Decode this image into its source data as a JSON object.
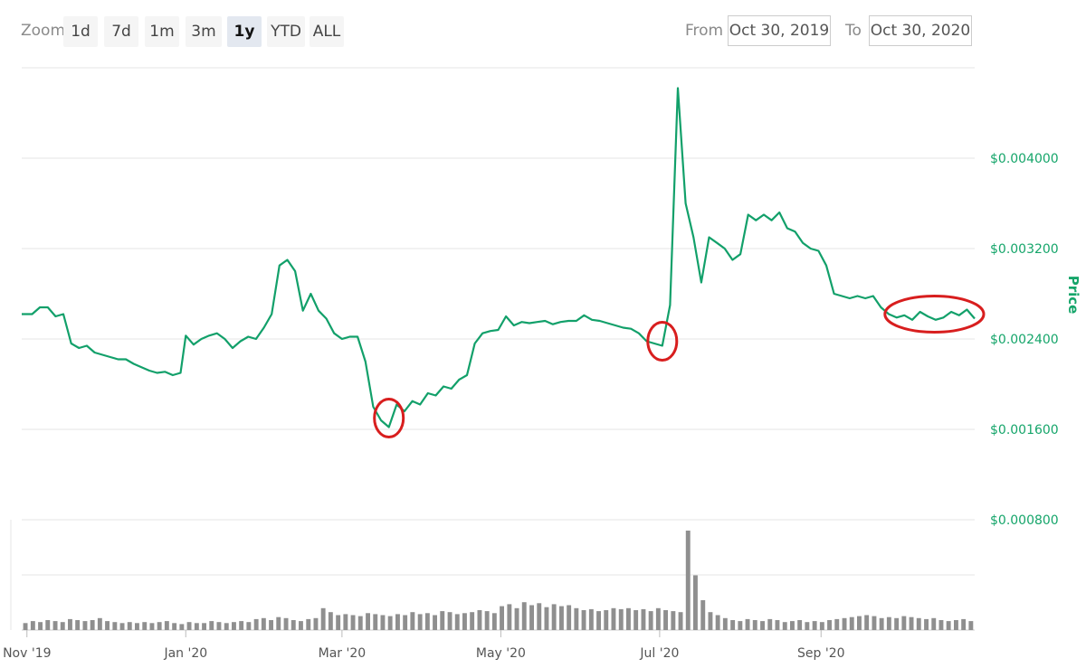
{
  "toolbar": {
    "zoom_label": "Zoom",
    "zoom_buttons": [
      "1d",
      "7d",
      "1m",
      "3m",
      "1y",
      "YTD",
      "ALL"
    ],
    "active_zoom": "1y",
    "from_label": "From",
    "from_value": "Oct 30, 2019",
    "to_label": "To",
    "to_value": "Oct 30, 2020"
  },
  "colors": {
    "price_line": "#12a06a",
    "volume_bar": "#8f8f8f",
    "gridline": "#e6e6e6",
    "annotation": "#d81e1e",
    "axis_text": "#15a56a"
  },
  "chart_data": {
    "type": "line",
    "ylabel": "Price",
    "ylim": [
      0.0008,
      0.0048
    ],
    "yticks": [
      {
        "value": 0.0008,
        "label": "$0.000800"
      },
      {
        "value": 0.0016,
        "label": "$0.001600"
      },
      {
        "value": 0.0024,
        "label": "$0.002400"
      },
      {
        "value": 0.0032,
        "label": "$0.003200"
      },
      {
        "value": 0.004,
        "label": "$0.004000"
      }
    ],
    "xlim": [
      "2019-10-30",
      "2020-10-30"
    ],
    "xticks": [
      {
        "date": "2019-11-01",
        "label": "Nov '19"
      },
      {
        "date": "2020-01-01",
        "label": "Jan '20"
      },
      {
        "date": "2020-03-01",
        "label": "Mar '20"
      },
      {
        "date": "2020-05-01",
        "label": "May '20"
      },
      {
        "date": "2020-07-01",
        "label": "Jul '20"
      },
      {
        "date": "2020-09-01",
        "label": "Sep '20"
      }
    ],
    "series": [
      {
        "values": [
          [
            "2019-10-30",
            0.00262
          ],
          [
            "2019-11-03",
            0.00262
          ],
          [
            "2019-11-06",
            0.00268
          ],
          [
            "2019-11-09",
            0.00268
          ],
          [
            "2019-11-12",
            0.0026
          ],
          [
            "2019-11-15",
            0.00262
          ],
          [
            "2019-11-18",
            0.00236
          ],
          [
            "2019-11-21",
            0.00232
          ],
          [
            "2019-11-24",
            0.00234
          ],
          [
            "2019-11-27",
            0.00228
          ],
          [
            "2019-11-30",
            0.00226
          ],
          [
            "2019-12-03",
            0.00224
          ],
          [
            "2019-12-06",
            0.00222
          ],
          [
            "2019-12-09",
            0.00222
          ],
          [
            "2019-12-12",
            0.00218
          ],
          [
            "2019-12-15",
            0.00215
          ],
          [
            "2019-12-18",
            0.00212
          ],
          [
            "2019-12-21",
            0.0021
          ],
          [
            "2019-12-24",
            0.00211
          ],
          [
            "2019-12-27",
            0.00208
          ],
          [
            "2019-12-30",
            0.0021
          ],
          [
            "2020-01-01",
            0.00243
          ],
          [
            "2020-01-04",
            0.00235
          ],
          [
            "2020-01-07",
            0.0024
          ],
          [
            "2020-01-10",
            0.00243
          ],
          [
            "2020-01-13",
            0.00245
          ],
          [
            "2020-01-16",
            0.0024
          ],
          [
            "2020-01-19",
            0.00232
          ],
          [
            "2020-01-22",
            0.00238
          ],
          [
            "2020-01-25",
            0.00242
          ],
          [
            "2020-01-28",
            0.0024
          ],
          [
            "2020-01-31",
            0.0025
          ],
          [
            "2020-02-03",
            0.00262
          ],
          [
            "2020-02-06",
            0.00305
          ],
          [
            "2020-02-09",
            0.0031
          ],
          [
            "2020-02-12",
            0.003
          ],
          [
            "2020-02-15",
            0.00265
          ],
          [
            "2020-02-18",
            0.0028
          ],
          [
            "2020-02-21",
            0.00265
          ],
          [
            "2020-02-24",
            0.00258
          ],
          [
            "2020-02-27",
            0.00245
          ],
          [
            "2020-03-01",
            0.0024
          ],
          [
            "2020-03-04",
            0.00242
          ],
          [
            "2020-03-07",
            0.00242
          ],
          [
            "2020-03-10",
            0.0022
          ],
          [
            "2020-03-13",
            0.0018
          ],
          [
            "2020-03-16",
            0.00168
          ],
          [
            "2020-03-19",
            0.00162
          ],
          [
            "2020-03-22",
            0.00182
          ],
          [
            "2020-03-25",
            0.00176
          ],
          [
            "2020-03-28",
            0.00185
          ],
          [
            "2020-03-31",
            0.00182
          ],
          [
            "2020-04-03",
            0.00192
          ],
          [
            "2020-04-06",
            0.0019
          ],
          [
            "2020-04-09",
            0.00198
          ],
          [
            "2020-04-12",
            0.00196
          ],
          [
            "2020-04-15",
            0.00204
          ],
          [
            "2020-04-18",
            0.00208
          ],
          [
            "2020-04-21",
            0.00236
          ],
          [
            "2020-04-24",
            0.00245
          ],
          [
            "2020-04-27",
            0.00247
          ],
          [
            "2020-04-30",
            0.00248
          ],
          [
            "2020-05-03",
            0.0026
          ],
          [
            "2020-05-06",
            0.00252
          ],
          [
            "2020-05-09",
            0.00255
          ],
          [
            "2020-05-12",
            0.00254
          ],
          [
            "2020-05-15",
            0.00255
          ],
          [
            "2020-05-18",
            0.00256
          ],
          [
            "2020-05-21",
            0.00253
          ],
          [
            "2020-05-24",
            0.00255
          ],
          [
            "2020-05-27",
            0.00256
          ],
          [
            "2020-05-30",
            0.00256
          ],
          [
            "2020-06-02",
            0.00261
          ],
          [
            "2020-06-05",
            0.00257
          ],
          [
            "2020-06-08",
            0.00256
          ],
          [
            "2020-06-11",
            0.00254
          ],
          [
            "2020-06-14",
            0.00252
          ],
          [
            "2020-06-17",
            0.0025
          ],
          [
            "2020-06-20",
            0.00249
          ],
          [
            "2020-06-23",
            0.00245
          ],
          [
            "2020-06-26",
            0.00238
          ],
          [
            "2020-06-29",
            0.00236
          ],
          [
            "2020-07-02",
            0.00234
          ],
          [
            "2020-07-05",
            0.0027
          ],
          [
            "2020-07-08",
            0.00462
          ],
          [
            "2020-07-11",
            0.0036
          ],
          [
            "2020-07-14",
            0.0033
          ],
          [
            "2020-07-17",
            0.0029
          ],
          [
            "2020-07-20",
            0.0033
          ],
          [
            "2020-07-23",
            0.00325
          ],
          [
            "2020-07-26",
            0.0032
          ],
          [
            "2020-07-29",
            0.0031
          ],
          [
            "2020-08-01",
            0.00315
          ],
          [
            "2020-08-04",
            0.0035
          ],
          [
            "2020-08-07",
            0.00345
          ],
          [
            "2020-08-10",
            0.0035
          ],
          [
            "2020-08-13",
            0.00345
          ],
          [
            "2020-08-16",
            0.00352
          ],
          [
            "2020-08-19",
            0.00338
          ],
          [
            "2020-08-22",
            0.00335
          ],
          [
            "2020-08-25",
            0.00325
          ],
          [
            "2020-08-28",
            0.0032
          ],
          [
            "2020-08-31",
            0.00318
          ],
          [
            "2020-09-03",
            0.00305
          ],
          [
            "2020-09-06",
            0.0028
          ],
          [
            "2020-09-09",
            0.00278
          ],
          [
            "2020-09-12",
            0.00276
          ],
          [
            "2020-09-15",
            0.00278
          ],
          [
            "2020-09-18",
            0.00276
          ],
          [
            "2020-09-21",
            0.00278
          ],
          [
            "2020-09-24",
            0.00268
          ],
          [
            "2020-09-27",
            0.00262
          ],
          [
            "2020-09-30",
            0.00259
          ],
          [
            "2020-10-03",
            0.00261
          ],
          [
            "2020-10-06",
            0.00257
          ],
          [
            "2020-10-09",
            0.00264
          ],
          [
            "2020-10-12",
            0.0026
          ],
          [
            "2020-10-15",
            0.00257
          ],
          [
            "2020-10-18",
            0.00259
          ],
          [
            "2020-10-21",
            0.00264
          ],
          [
            "2020-10-24",
            0.00261
          ],
          [
            "2020-10-27",
            0.00266
          ],
          [
            "2020-10-30",
            0.00258
          ]
        ]
      }
    ],
    "volume": {
      "max_relative": 1.0,
      "relative_values": [
        0.07,
        0.09,
        0.08,
        0.1,
        0.09,
        0.08,
        0.11,
        0.1,
        0.09,
        0.1,
        0.12,
        0.09,
        0.08,
        0.07,
        0.08,
        0.07,
        0.08,
        0.07,
        0.08,
        0.09,
        0.07,
        0.06,
        0.08,
        0.07,
        0.07,
        0.09,
        0.08,
        0.07,
        0.08,
        0.09,
        0.08,
        0.11,
        0.12,
        0.1,
        0.13,
        0.12,
        0.1,
        0.09,
        0.11,
        0.12,
        0.22,
        0.18,
        0.15,
        0.16,
        0.15,
        0.14,
        0.17,
        0.16,
        0.15,
        0.14,
        0.16,
        0.15,
        0.18,
        0.16,
        0.17,
        0.15,
        0.19,
        0.18,
        0.16,
        0.17,
        0.18,
        0.2,
        0.19,
        0.17,
        0.24,
        0.26,
        0.22,
        0.28,
        0.25,
        0.27,
        0.23,
        0.26,
        0.24,
        0.25,
        0.22,
        0.2,
        0.21,
        0.19,
        0.2,
        0.22,
        0.21,
        0.22,
        0.2,
        0.21,
        0.19,
        0.22,
        0.2,
        0.19,
        0.18,
        1.0,
        0.55,
        0.3,
        0.18,
        0.15,
        0.12,
        0.1,
        0.09,
        0.11,
        0.1,
        0.09,
        0.11,
        0.1,
        0.08,
        0.09,
        0.1,
        0.08,
        0.09,
        0.08,
        0.1,
        0.11,
        0.12,
        0.13,
        0.14,
        0.15,
        0.14,
        0.12,
        0.13,
        0.12,
        0.14,
        0.13,
        0.12,
        0.11,
        0.12,
        0.1,
        0.09,
        0.1,
        0.11,
        0.09
      ]
    },
    "annotations": [
      {
        "shape": "circle",
        "date": "2020-03-19",
        "value": 0.0017
      },
      {
        "shape": "circle",
        "date": "2020-07-02",
        "value": 0.00238
      },
      {
        "shape": "ellipse",
        "date_from": "2020-09-29",
        "date_to": "2020-10-30",
        "value": 0.00262
      }
    ],
    "grid": true,
    "legend": "none"
  }
}
